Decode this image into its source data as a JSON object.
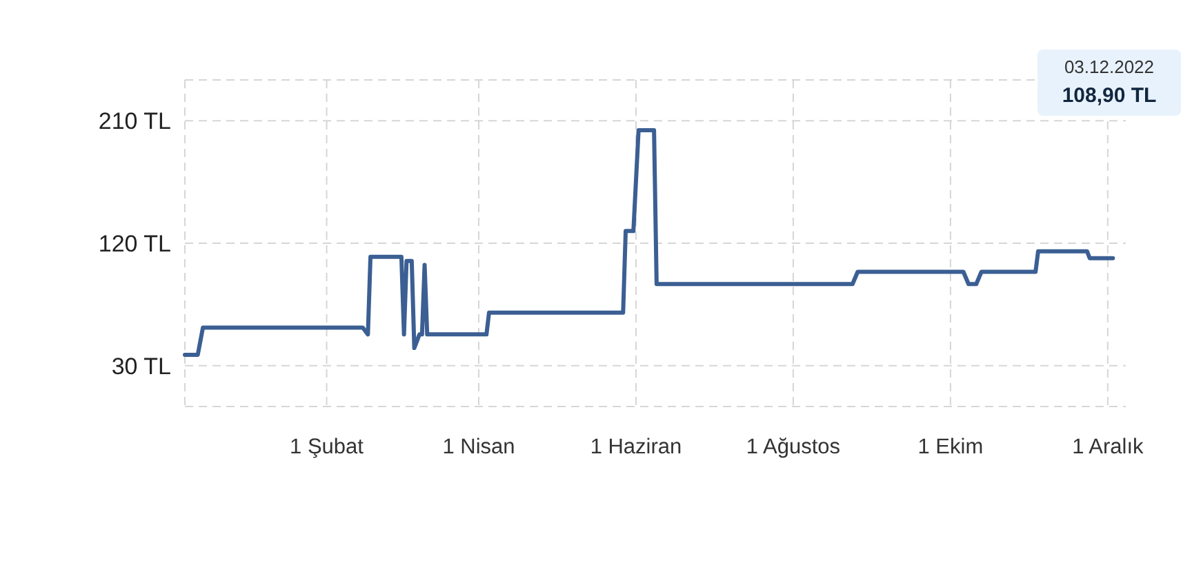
{
  "chart_data": {
    "type": "line",
    "x": [
      "2021-12-08",
      "2021-12-13",
      "2021-12-15",
      "2022-02-15",
      "2022-02-17",
      "2022-02-18",
      "2022-03-02",
      "2022-03-03",
      "2022-03-04",
      "2022-03-06",
      "2022-03-07",
      "2022-03-09",
      "2022-03-10",
      "2022-03-11",
      "2022-03-12",
      "2022-04-04",
      "2022-04-05",
      "2022-05-27",
      "2022-05-28",
      "2022-05-31",
      "2022-06-02",
      "2022-06-08",
      "2022-06-09",
      "2022-08-24",
      "2022-08-26",
      "2022-10-06",
      "2022-10-08",
      "2022-10-11",
      "2022-10-13",
      "2022-11-03",
      "2022-11-04",
      "2022-11-23",
      "2022-11-24",
      "2022-12-03"
    ],
    "series": [
      {
        "color": "#3b5f93",
        "values": [
          38,
          38,
          58,
          58,
          53,
          110,
          110,
          53,
          107,
          107,
          43,
          53,
          53,
          104,
          53,
          53,
          69,
          69,
          129,
          129,
          203,
          203,
          90,
          90,
          99,
          99,
          90,
          90,
          99,
          99,
          114,
          114,
          109,
          109
        ]
      }
    ],
    "xlim": [
      "2021-12-08",
      "2022-12-08"
    ],
    "xticks": [
      {
        "value": "2022-02-01",
        "label": "1 Şubat"
      },
      {
        "value": "2022-04-01",
        "label": "1 Nisan"
      },
      {
        "value": "2022-06-01",
        "label": "1 Haziran"
      },
      {
        "value": "2022-08-01",
        "label": "1 Ağustos"
      },
      {
        "value": "2022-10-01",
        "label": "1 Ekim"
      },
      {
        "value": "2022-12-01",
        "label": "1 Aralık"
      }
    ],
    "ylim": [
      0,
      240
    ],
    "yticks": [
      {
        "value": 0,
        "label": null
      },
      {
        "value": 30,
        "label": "30 TL"
      },
      {
        "value": 120,
        "label": "120 TL"
      },
      {
        "value": 210,
        "label": "210 TL"
      },
      {
        "value": 240,
        "label": null
      }
    ],
    "grid": true,
    "line_style": "solid",
    "marker": "none",
    "annotations": [
      "03.12.2022",
      "108,90 TL"
    ]
  }
}
